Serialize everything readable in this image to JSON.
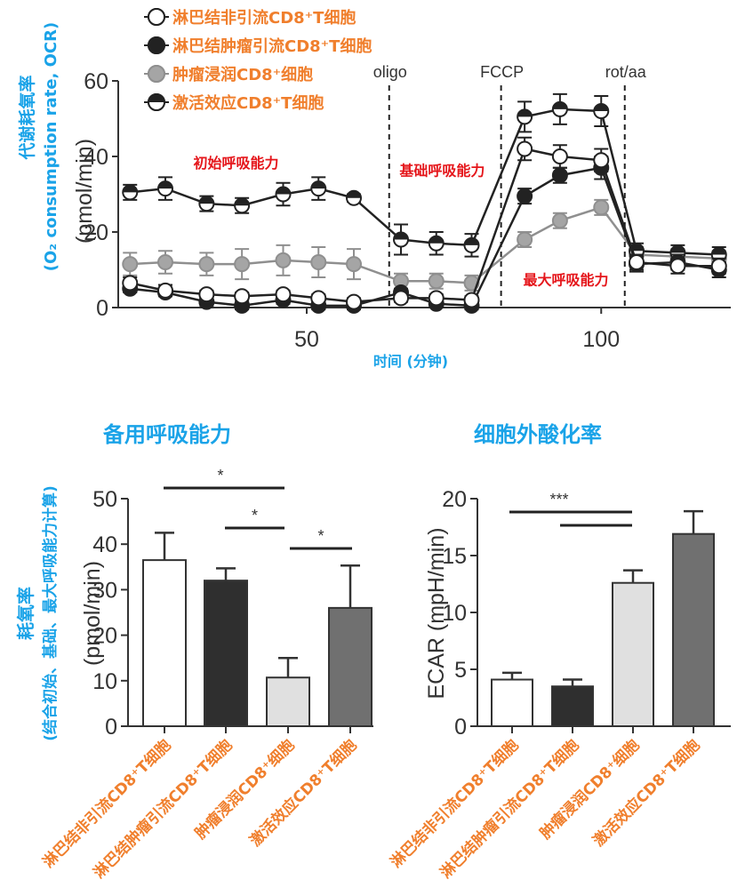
{
  "chart_data": [
    {
      "type": "line",
      "ylabel": "(pmol/min)",
      "ylabel_left": "代谢耗氧率",
      "ylabel_left2": "(O₂ consumption rate, OCR)",
      "xlabel": "时间 (分钟)",
      "xlim": [
        18,
        122
      ],
      "ylim": [
        0,
        60
      ],
      "xticks": [
        50,
        100
      ],
      "yticks": [
        0,
        20,
        40,
        60
      ],
      "vlines": [
        {
          "x": 64,
          "label": "oligo"
        },
        {
          "x": 83,
          "label": "FCCP"
        },
        {
          "x": 104,
          "label": "rot/aa"
        }
      ],
      "annotations": [
        {
          "text": "初始呼吸能力",
          "x": 38,
          "y": 37
        },
        {
          "text": "基础呼吸能力",
          "x": 73,
          "y": 35
        },
        {
          "text": "最大呼吸能力",
          "x": 94,
          "y": 6
        }
      ],
      "x": [
        20,
        26,
        33,
        39,
        46,
        52,
        58,
        66,
        72,
        78,
        87,
        93,
        100,
        106,
        113,
        120
      ],
      "series": [
        {
          "name": "淋巴结非引流CD8⁺T细胞",
          "marker": "open",
          "values": [
            6.5,
            4.5,
            3.5,
            3,
            3.5,
            2.5,
            1.5,
            2.5,
            2.5,
            2,
            42,
            40,
            39,
            12,
            11,
            11
          ],
          "err": [
            1.5,
            1.5,
            1,
            1,
            1,
            1,
            1,
            1,
            1,
            1,
            3,
            3,
            3,
            2,
            2,
            2
          ]
        },
        {
          "name": "淋巴结肿瘤引流CD8⁺T细胞",
          "marker": "filled",
          "values": [
            5,
            4,
            1.5,
            0.5,
            2,
            0.5,
            0.5,
            4,
            1,
            0.5,
            29.5,
            35,
            37,
            11.5,
            12,
            10
          ],
          "err": [
            1,
            1,
            1,
            1,
            1,
            1,
            1,
            1,
            1,
            1,
            2,
            2,
            3,
            2,
            2,
            2
          ]
        },
        {
          "name": "肿瘤浸润CD8⁺细胞",
          "marker": "gray",
          "values": [
            11.5,
            12,
            11.5,
            11.5,
            12.5,
            12,
            11.5,
            7,
            7,
            6.5,
            18,
            23,
            26.5,
            14,
            13.5,
            13
          ],
          "err": [
            3,
            3,
            3,
            4,
            4,
            4,
            4,
            2,
            2,
            2,
            2,
            2,
            2,
            2,
            2,
            2
          ]
        },
        {
          "name": "激活效应CD8⁺T细胞",
          "marker": "half",
          "values": [
            30.5,
            31.5,
            27.5,
            27,
            30,
            31.5,
            29,
            18,
            17,
            16.5,
            50.5,
            52.5,
            52,
            15,
            14.5,
            14
          ],
          "err": [
            2,
            3,
            2,
            2,
            3,
            3,
            1,
            4,
            3,
            3,
            4,
            4,
            4,
            2,
            2,
            2
          ]
        }
      ]
    },
    {
      "type": "bar",
      "title": "备用呼吸能力",
      "ylabel": "(pmol/min)",
      "ylabel_left": "耗氧率",
      "ylabel_left2": "(结合初始、基础、最大呼吸能力计算)",
      "ylim": [
        0,
        50
      ],
      "yticks": [
        0,
        10,
        20,
        30,
        40,
        50
      ],
      "categories": [
        "淋巴结非引流CD8⁺T细胞",
        "淋巴结肿瘤引流CD8⁺T细胞",
        "肿瘤浸润CD8⁺细胞",
        "激活效应CD8⁺T细胞"
      ],
      "values": [
        36.5,
        32,
        10.7,
        26
      ],
      "err": [
        6,
        2.7,
        4.3,
        9.3
      ],
      "bar_colors": [
        "#ffffff",
        "#2f2f2f",
        "#e0e0e0",
        "#707070"
      ],
      "significance": [
        {
          "from": 0,
          "to": 2,
          "label": "*"
        },
        {
          "from": 1,
          "to": 2,
          "label": "*"
        },
        {
          "from": 2,
          "to": 3,
          "label": "*"
        }
      ]
    },
    {
      "type": "bar",
      "title": "细胞外酸化率",
      "ylabel": "ECAR (mpH/min)",
      "ylim": [
        0,
        20
      ],
      "yticks": [
        0,
        5,
        10,
        15,
        20
      ],
      "categories": [
        "淋巴结非引流CD8⁺T细胞",
        "淋巴结肿瘤引流CD8⁺T细胞",
        "肿瘤浸润CD8⁺细胞",
        "激活效应CD8⁺T细胞"
      ],
      "values": [
        4.1,
        3.5,
        12.6,
        16.9
      ],
      "err": [
        0.6,
        0.6,
        1.1,
        2
      ],
      "bar_colors": [
        "#ffffff",
        "#2f2f2f",
        "#e0e0e0",
        "#707070"
      ],
      "significance": [
        {
          "from": 0,
          "to": 2,
          "label": "***"
        },
        {
          "from": 1,
          "to": 2,
          "label": ""
        }
      ]
    }
  ]
}
